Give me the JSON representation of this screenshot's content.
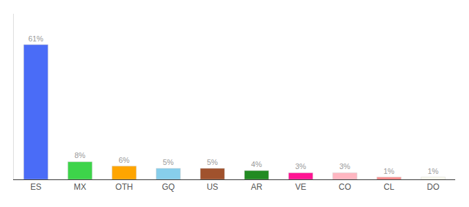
{
  "chart_data": {
    "type": "bar",
    "categories": [
      "ES",
      "MX",
      "OTH",
      "GQ",
      "US",
      "AR",
      "VE",
      "CO",
      "CL",
      "DO"
    ],
    "values": [
      61,
      8,
      6,
      5,
      5,
      4,
      3,
      3,
      1,
      1
    ],
    "value_labels": [
      "61%",
      "8%",
      "6%",
      "5%",
      "5%",
      "4%",
      "3%",
      "3%",
      "1%",
      "1%"
    ],
    "colors": [
      "#4A6CF7",
      "#3DD44A",
      "#FFA500",
      "#87CEEB",
      "#A0522D",
      "#228B22",
      "#FF1493",
      "#FFB6C1",
      "#FF8888",
      "#FFFFF0"
    ],
    "ylim": [
      0,
      75
    ],
    "data_labels": true,
    "tick_labels": "x",
    "grid": false
  }
}
